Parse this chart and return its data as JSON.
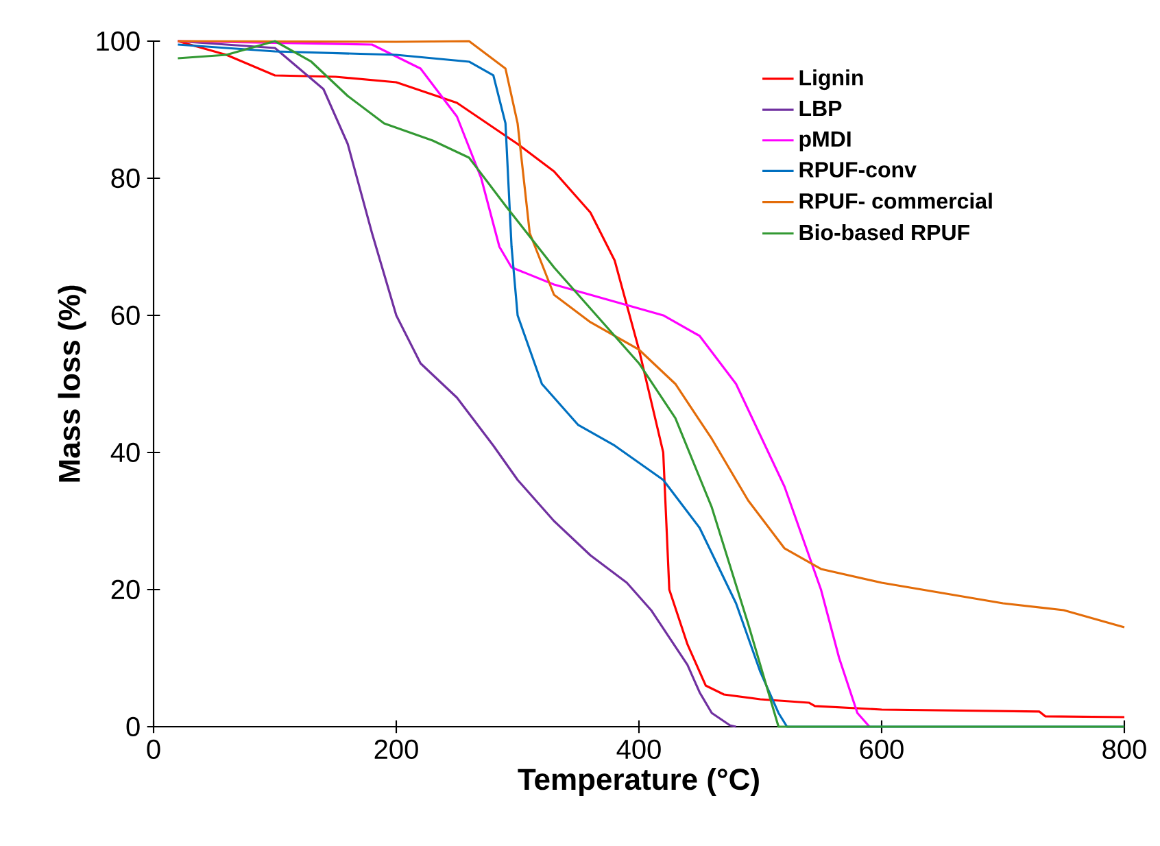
{
  "chart_data": {
    "type": "line",
    "xlabel": "Temperature (°C)",
    "ylabel": "Mass loss (%)",
    "xlim": [
      0,
      800
    ],
    "xticks": [
      0,
      200,
      400,
      600,
      800
    ],
    "ylim": [
      0,
      100
    ],
    "yticks": [
      0,
      20,
      40,
      60,
      80,
      100
    ],
    "grid": false,
    "legend": "top right",
    "marker": "none",
    "line_style": "solid",
    "series": [
      {
        "name": "Lignin",
        "color": "#ff0000",
        "x": [
          20,
          60,
          100,
          150,
          200,
          250,
          300,
          330,
          360,
          380,
          400,
          420,
          425,
          440,
          455,
          470,
          500,
          540,
          545,
          600,
          730,
          735,
          800
        ],
        "values": [
          100,
          98,
          95,
          94.8,
          94,
          91,
          85,
          81,
          75,
          68,
          55,
          40,
          20,
          12,
          6,
          4.7,
          4,
          3.5,
          3,
          2.5,
          2.2,
          1.5,
          1.4
        ]
      },
      {
        "name": "LBP",
        "color": "#7030a0",
        "x": [
          20,
          100,
          140,
          160,
          180,
          200,
          220,
          250,
          280,
          300,
          330,
          360,
          390,
          410,
          440,
          450,
          460,
          475,
          480
        ],
        "values": [
          100,
          99,
          93,
          85,
          72,
          60,
          53,
          48,
          41,
          36,
          30,
          25,
          21,
          17,
          9,
          5,
          2,
          0.2,
          0
        ]
      },
      {
        "name": "pMDI",
        "color": "#ff00ff",
        "x": [
          20,
          180,
          220,
          250,
          270,
          285,
          295,
          330,
          380,
          420,
          450,
          480,
          520,
          550,
          565,
          580,
          590
        ],
        "values": [
          100,
          99.5,
          96,
          89,
          80,
          70,
          67,
          64.5,
          62,
          60,
          57,
          50,
          35,
          20,
          10,
          2,
          0
        ]
      },
      {
        "name": "RPUF-conv",
        "color": "#0070c0",
        "x": [
          20,
          100,
          200,
          260,
          280,
          290,
          295,
          300,
          320,
          350,
          380,
          420,
          450,
          480,
          500,
          515,
          522,
          800
        ],
        "values": [
          99.5,
          98.5,
          98,
          97,
          95,
          88,
          70,
          60,
          50,
          44,
          41,
          36,
          29,
          18,
          8,
          2,
          0,
          0
        ]
      },
      {
        "name": "RPUF- commercial",
        "color": "#e36c09",
        "x": [
          20,
          200,
          260,
          290,
          300,
          310,
          330,
          360,
          400,
          430,
          460,
          490,
          520,
          550,
          600,
          650,
          700,
          750,
          780,
          800
        ],
        "values": [
          100,
          99.9,
          100,
          96,
          88,
          72,
          63,
          59,
          55,
          50,
          42,
          33,
          26,
          23,
          21,
          19.5,
          18,
          17,
          15.5,
          14.5
        ]
      },
      {
        "name": "Bio-based RPUF",
        "color": "#339933",
        "x": [
          20,
          60,
          100,
          130,
          160,
          190,
          230,
          260,
          290,
          330,
          370,
          400,
          430,
          460,
          490,
          510,
          515,
          800
        ],
        "values": [
          97.5,
          98,
          100,
          97,
          92,
          88,
          85.5,
          83,
          76,
          67,
          59,
          53,
          45,
          32,
          15,
          3,
          0,
          0
        ]
      }
    ]
  }
}
